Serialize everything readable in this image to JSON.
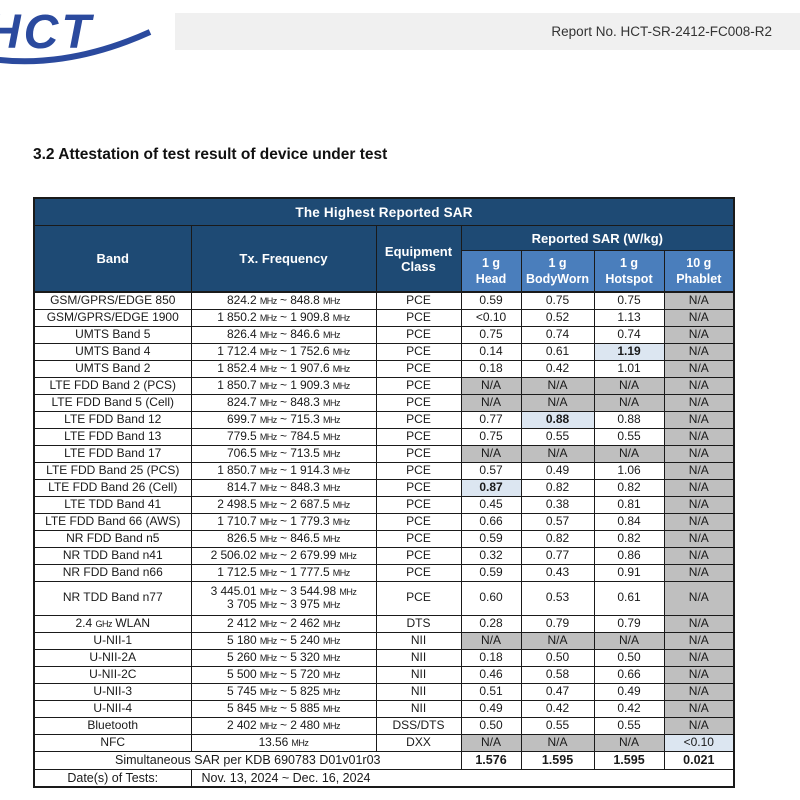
{
  "header": {
    "logo_text": "HCT",
    "report_no": "Report No. HCT-SR-2412-FC008-R2"
  },
  "section": {
    "heading": "3.2 Attestation of test result of device under test"
  },
  "colors": {
    "header_dark": "#1E4A74",
    "header_mid": "#4A7EBC",
    "na_gray": "#BFBFBF",
    "highlight_blue": "#DCE6F1",
    "logo_blue": "#2B4A9E",
    "bar_gray": "#F0F0F0"
  },
  "table": {
    "title": "The Highest Reported SAR",
    "columns": {
      "band": "Band",
      "tx_frequency": "Tx. Frequency",
      "equipment_class_line1": "Equipment",
      "equipment_class_line2": "Class",
      "reported_sar": "Reported SAR (W/kg)",
      "sub": [
        {
          "line1": "1 g",
          "line2": "Head"
        },
        {
          "line1": "1 g",
          "line2": "BodyWorn"
        },
        {
          "line1": "1 g",
          "line2": "Hotspot"
        },
        {
          "line1": "10 g",
          "line2": "Phablet"
        }
      ]
    },
    "rows": [
      {
        "band": "GSM/GPRS/EDGE 850",
        "freq": [
          "824.2 MHz ~ 848.8 MHz"
        ],
        "cls": "PCE",
        "cells": [
          {
            "v": "0.59"
          },
          {
            "v": "0.75"
          },
          {
            "v": "0.75"
          },
          {
            "v": "N/A"
          }
        ]
      },
      {
        "band": "GSM/GPRS/EDGE 1900",
        "freq": [
          "1 850.2 MHz ~ 1 909.8 MHz"
        ],
        "cls": "PCE",
        "cells": [
          {
            "v": "<0.10"
          },
          {
            "v": "0.52"
          },
          {
            "v": "1.13"
          },
          {
            "v": "N/A"
          }
        ]
      },
      {
        "band": "UMTS Band 5",
        "freq": [
          "826.4 MHz ~ 846.6 MHz"
        ],
        "cls": "PCE",
        "cells": [
          {
            "v": "0.75"
          },
          {
            "v": "0.74"
          },
          {
            "v": "0.74"
          },
          {
            "v": "N/A"
          }
        ]
      },
      {
        "band": "UMTS Band 4",
        "freq": [
          "1 712.4 MHz ~ 1 752.6 MHz"
        ],
        "cls": "PCE",
        "cells": [
          {
            "v": "0.14"
          },
          {
            "v": "0.61"
          },
          {
            "v": "1.19",
            "hl": true,
            "b": true
          },
          {
            "v": "N/A"
          }
        ]
      },
      {
        "band": "UMTS Band 2",
        "freq": [
          "1 852.4 MHz ~ 1 907.6 MHz"
        ],
        "cls": "PCE",
        "cells": [
          {
            "v": "0.18"
          },
          {
            "v": "0.42"
          },
          {
            "v": "1.01"
          },
          {
            "v": "N/A"
          }
        ]
      },
      {
        "band": "LTE FDD Band 2 (PCS)",
        "freq": [
          "1 850.7 MHz ~ 1 909.3 MHz"
        ],
        "cls": "PCE",
        "cells": [
          {
            "v": "N/A"
          },
          {
            "v": "N/A"
          },
          {
            "v": "N/A"
          },
          {
            "v": "N/A"
          }
        ]
      },
      {
        "band": "LTE FDD Band 5 (Cell)",
        "freq": [
          "824.7 MHz ~ 848.3 MHz"
        ],
        "cls": "PCE",
        "cells": [
          {
            "v": "N/A"
          },
          {
            "v": "N/A"
          },
          {
            "v": "N/A"
          },
          {
            "v": "N/A"
          }
        ]
      },
      {
        "band": "LTE FDD Band 12",
        "freq": [
          "699.7 MHz ~ 715.3 MHz"
        ],
        "cls": "PCE",
        "cells": [
          {
            "v": "0.77"
          },
          {
            "v": "0.88",
            "hl": true,
            "b": true
          },
          {
            "v": "0.88"
          },
          {
            "v": "N/A"
          }
        ]
      },
      {
        "band": "LTE FDD Band 13",
        "freq": [
          "779.5 MHz ~ 784.5 MHz"
        ],
        "cls": "PCE",
        "cells": [
          {
            "v": "0.75"
          },
          {
            "v": "0.55"
          },
          {
            "v": "0.55"
          },
          {
            "v": "N/A"
          }
        ]
      },
      {
        "band": "LTE FDD Band 17",
        "freq": [
          "706.5 MHz ~ 713.5 MHz"
        ],
        "cls": "PCE",
        "cells": [
          {
            "v": "N/A"
          },
          {
            "v": "N/A"
          },
          {
            "v": "N/A"
          },
          {
            "v": "N/A"
          }
        ]
      },
      {
        "band": "LTE FDD Band 25 (PCS)",
        "freq": [
          "1 850.7 MHz ~ 1 914.3 MHz"
        ],
        "cls": "PCE",
        "cells": [
          {
            "v": "0.57"
          },
          {
            "v": "0.49"
          },
          {
            "v": "1.06"
          },
          {
            "v": "N/A"
          }
        ]
      },
      {
        "band": "LTE FDD Band 26 (Cell)",
        "freq": [
          "814.7 MHz ~ 848.3 MHz"
        ],
        "cls": "PCE",
        "cells": [
          {
            "v": "0.87",
            "hl": true,
            "b": true
          },
          {
            "v": "0.82"
          },
          {
            "v": "0.82"
          },
          {
            "v": "N/A"
          }
        ]
      },
      {
        "band": "LTE TDD Band 41",
        "freq": [
          "2 498.5 MHz ~ 2 687.5 MHz"
        ],
        "cls": "PCE",
        "cells": [
          {
            "v": "0.45"
          },
          {
            "v": "0.38"
          },
          {
            "v": "0.81"
          },
          {
            "v": "N/A"
          }
        ]
      },
      {
        "band": "LTE FDD Band 66 (AWS)",
        "freq": [
          "1 710.7 MHz ~ 1 779.3 MHz"
        ],
        "cls": "PCE",
        "cells": [
          {
            "v": "0.66"
          },
          {
            "v": "0.57"
          },
          {
            "v": "0.84"
          },
          {
            "v": "N/A"
          }
        ]
      },
      {
        "band": "NR FDD Band n5",
        "freq": [
          "826.5 MHz ~ 846.5 MHz"
        ],
        "cls": "PCE",
        "cells": [
          {
            "v": "0.59"
          },
          {
            "v": "0.82"
          },
          {
            "v": "0.82"
          },
          {
            "v": "N/A"
          }
        ]
      },
      {
        "band": "NR TDD Band n41",
        "freq": [
          "2 506.02 MHz ~ 2 679.99 MHz"
        ],
        "cls": "PCE",
        "cells": [
          {
            "v": "0.32"
          },
          {
            "v": "0.77"
          },
          {
            "v": "0.86"
          },
          {
            "v": "N/A"
          }
        ]
      },
      {
        "band": "NR FDD Band n66",
        "freq": [
          "1 712.5 MHz ~ 1 777.5 MHz"
        ],
        "cls": "PCE",
        "cells": [
          {
            "v": "0.59"
          },
          {
            "v": "0.43"
          },
          {
            "v": "0.91"
          },
          {
            "v": "N/A"
          }
        ]
      },
      {
        "band": "NR TDD Band n77",
        "freq": [
          "3 445.01 MHz ~ 3 544.98 MHz",
          "3 705 MHz ~ 3 975 MHz"
        ],
        "cls": "PCE",
        "cells": [
          {
            "v": "0.60"
          },
          {
            "v": "0.53"
          },
          {
            "v": "0.61"
          },
          {
            "v": "N/A"
          }
        ]
      },
      {
        "band": "2.4 GHz WLAN",
        "freq": [
          "2 412 MHz ~ 2 462 MHz"
        ],
        "cls": "DTS",
        "cells": [
          {
            "v": "0.28"
          },
          {
            "v": "0.79"
          },
          {
            "v": "0.79"
          },
          {
            "v": "N/A"
          }
        ]
      },
      {
        "band": "U-NII-1",
        "freq": [
          "5 180 MHz ~ 5 240 MHz"
        ],
        "cls": "NII",
        "cells": [
          {
            "v": "N/A"
          },
          {
            "v": "N/A"
          },
          {
            "v": "N/A"
          },
          {
            "v": "N/A"
          }
        ]
      },
      {
        "band": "U-NII-2A",
        "freq": [
          "5 260 MHz ~ 5 320 MHz"
        ],
        "cls": "NII",
        "cells": [
          {
            "v": "0.18"
          },
          {
            "v": "0.50"
          },
          {
            "v": "0.50"
          },
          {
            "v": "N/A"
          }
        ]
      },
      {
        "band": "U-NII-2C",
        "freq": [
          "5 500 MHz ~ 5 720 MHz"
        ],
        "cls": "NII",
        "cells": [
          {
            "v": "0.46"
          },
          {
            "v": "0.58"
          },
          {
            "v": "0.66"
          },
          {
            "v": "N/A"
          }
        ]
      },
      {
        "band": "U-NII-3",
        "freq": [
          "5 745 MHz ~ 5 825 MHz"
        ],
        "cls": "NII",
        "cells": [
          {
            "v": "0.51"
          },
          {
            "v": "0.47"
          },
          {
            "v": "0.49"
          },
          {
            "v": "N/A"
          }
        ]
      },
      {
        "band": "U-NII-4",
        "freq": [
          "5 845 MHz ~ 5 885 MHz"
        ],
        "cls": "NII",
        "cells": [
          {
            "v": "0.49"
          },
          {
            "v": "0.42"
          },
          {
            "v": "0.42"
          },
          {
            "v": "N/A"
          }
        ]
      },
      {
        "band": "Bluetooth",
        "freq": [
          "2 402 MHz ~ 2 480 MHz"
        ],
        "cls": "DSS/DTS",
        "cells": [
          {
            "v": "0.50"
          },
          {
            "v": "0.55"
          },
          {
            "v": "0.55"
          },
          {
            "v": "N/A"
          }
        ]
      },
      {
        "band": "NFC",
        "freq": [
          "13.56 MHz"
        ],
        "cls": "DXX",
        "cells": [
          {
            "v": "N/A"
          },
          {
            "v": "N/A"
          },
          {
            "v": "N/A"
          },
          {
            "v": "<0.10",
            "hl": true
          }
        ]
      }
    ],
    "simultaneous": {
      "label": "Simultaneous SAR per KDB 690783 D01v01r03",
      "values": [
        "1.576",
        "1.595",
        "1.595",
        "0.021"
      ]
    },
    "dates": {
      "label": "Date(s) of Tests:",
      "value": "Nov. 13, 2024 ~ Dec. 16, 2024"
    }
  }
}
